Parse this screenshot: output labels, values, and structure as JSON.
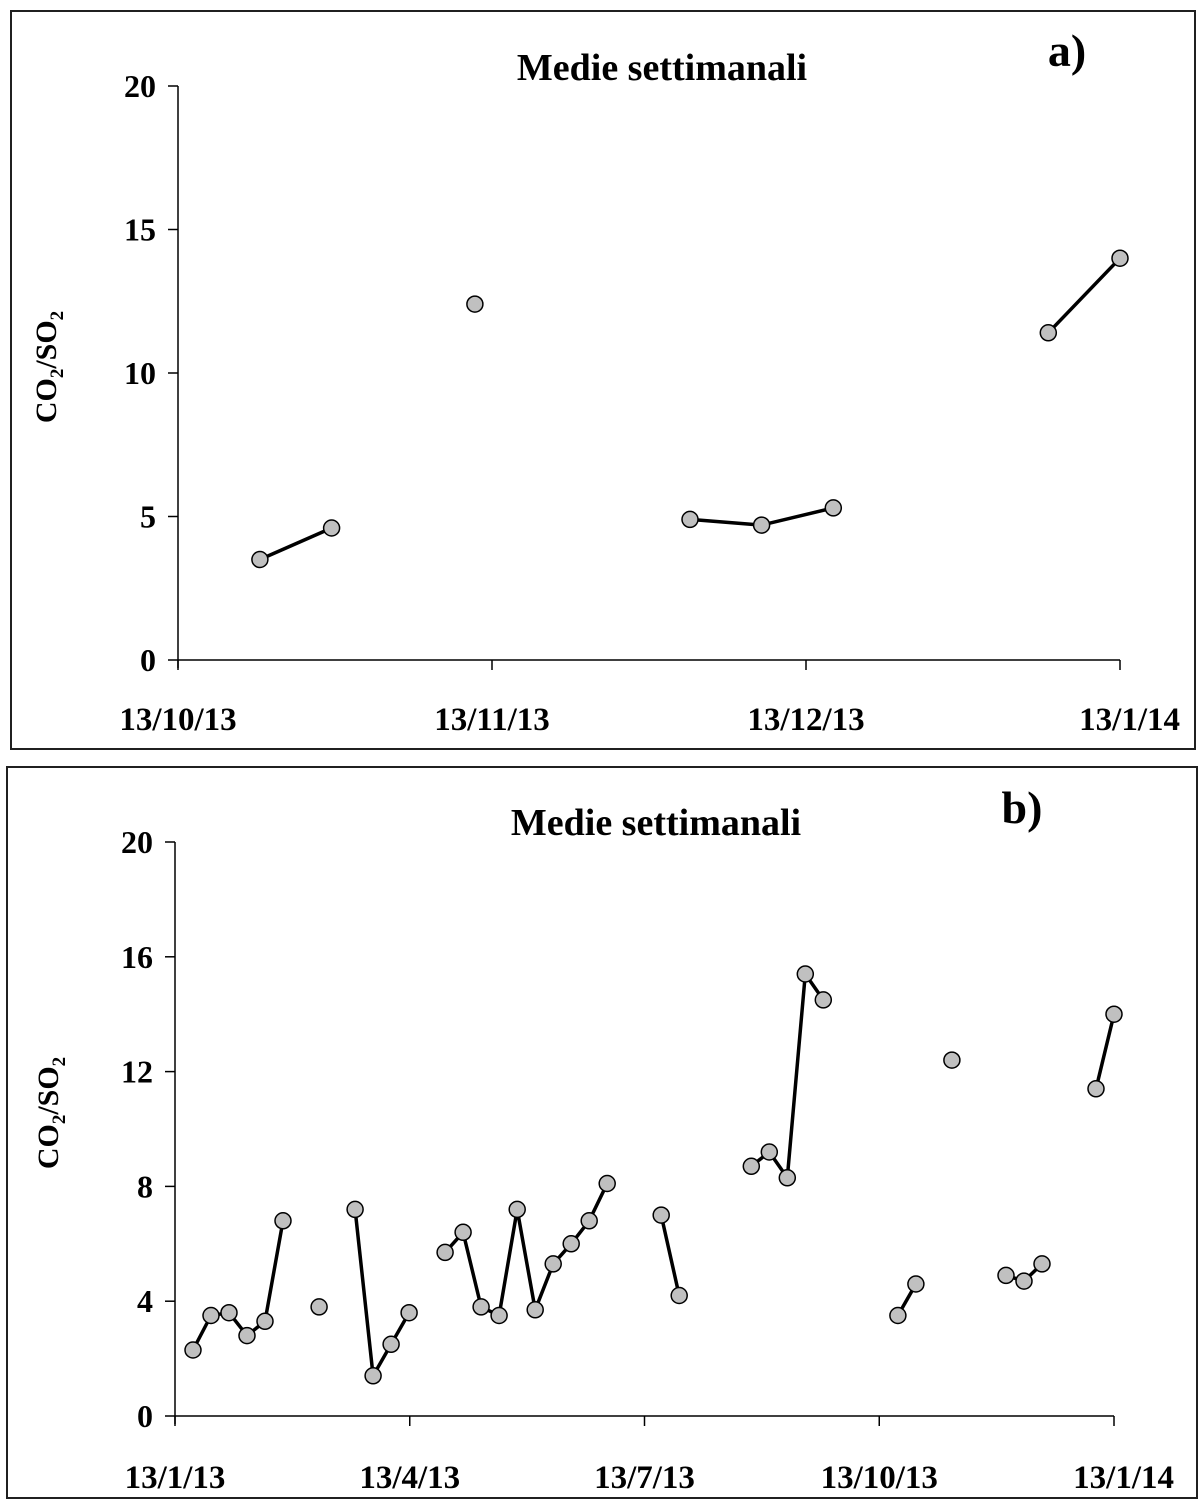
{
  "chart_data": [
    {
      "type": "line",
      "panel_label": "a)",
      "title": "Medie settimanali",
      "xlabel": "",
      "ylabel_parts": [
        "CO",
        "2",
        "/SO",
        "2"
      ],
      "x_ticks": [
        "13/10/13",
        "13/11/13",
        "13/12/13",
        "13/1/14"
      ],
      "xlim": [
        "2013-10-13",
        "2014-01-13"
      ],
      "ylim": [
        0,
        20
      ],
      "y_ticks": [
        0,
        5,
        10,
        15,
        20
      ],
      "grid": false,
      "marker_color": "#c0c0c0",
      "line_color": "#000000",
      "series": [
        {
          "segments": [
            [
              {
                "x": "2013-10-21",
                "y": 3.5
              },
              {
                "x": "2013-10-28",
                "y": 4.6
              }
            ],
            [
              {
                "x": "2013-11-11",
                "y": 12.4
              }
            ],
            [
              {
                "x": "2013-12-02",
                "y": 4.9
              },
              {
                "x": "2013-12-09",
                "y": 4.7
              },
              {
                "x": "2013-12-16",
                "y": 5.3
              }
            ],
            [
              {
                "x": "2014-01-06",
                "y": 11.4
              },
              {
                "x": "2014-01-13",
                "y": 14.0
              }
            ]
          ]
        }
      ]
    },
    {
      "type": "line",
      "panel_label": "b)",
      "title": "Medie settimanali",
      "xlabel": "",
      "ylabel_parts": [
        "CO",
        "2",
        "/SO",
        "2"
      ],
      "x_ticks": [
        "13/1/13",
        "13/4/13",
        "13/7/13",
        "13/10/13",
        "13/1/14"
      ],
      "xlim": [
        "2013-01-13",
        "2014-01-13"
      ],
      "ylim": [
        0,
        20
      ],
      "y_ticks": [
        0,
        4,
        8,
        12,
        16,
        20
      ],
      "grid": false,
      "marker_color": "#c0c0c0",
      "line_color": "#000000",
      "series": [
        {
          "segments": [
            [
              {
                "x": "2013-01-20",
                "y": 2.3
              },
              {
                "x": "2013-01-27",
                "y": 3.5
              },
              {
                "x": "2013-02-03",
                "y": 3.6
              },
              {
                "x": "2013-02-10",
                "y": 2.8
              },
              {
                "x": "2013-02-17",
                "y": 3.3
              },
              {
                "x": "2013-02-24",
                "y": 6.8
              }
            ],
            [
              {
                "x": "2013-03-10",
                "y": 3.8
              }
            ],
            [
              {
                "x": "2013-03-24",
                "y": 7.2
              },
              {
                "x": "2013-03-31",
                "y": 1.4
              },
              {
                "x": "2013-04-07",
                "y": 2.5
              },
              {
                "x": "2013-04-14",
                "y": 3.6
              }
            ],
            [
              {
                "x": "2013-04-28",
                "y": 5.7
              },
              {
                "x": "2013-05-05",
                "y": 6.4
              },
              {
                "x": "2013-05-12",
                "y": 3.8
              },
              {
                "x": "2013-05-19",
                "y": 3.5
              },
              {
                "x": "2013-05-26",
                "y": 7.2
              },
              {
                "x": "2013-06-02",
                "y": 3.7
              },
              {
                "x": "2013-06-09",
                "y": 5.3
              },
              {
                "x": "2013-06-16",
                "y": 6.0
              },
              {
                "x": "2013-06-23",
                "y": 6.8
              },
              {
                "x": "2013-06-30",
                "y": 8.1
              }
            ],
            [
              {
                "x": "2013-07-21",
                "y": 7.0
              },
              {
                "x": "2013-07-28",
                "y": 4.2
              }
            ],
            [
              {
                "x": "2013-08-25",
                "y": 8.7
              },
              {
                "x": "2013-09-01",
                "y": 9.2
              },
              {
                "x": "2013-09-08",
                "y": 8.3
              },
              {
                "x": "2013-09-15",
                "y": 15.4
              },
              {
                "x": "2013-09-22",
                "y": 14.5
              }
            ],
            [
              {
                "x": "2013-10-21",
                "y": 3.5
              },
              {
                "x": "2013-10-28",
                "y": 4.6
              }
            ],
            [
              {
                "x": "2013-11-11",
                "y": 12.4
              }
            ],
            [
              {
                "x": "2013-12-02",
                "y": 4.9
              },
              {
                "x": "2013-12-09",
                "y": 4.7
              },
              {
                "x": "2013-12-16",
                "y": 5.3
              }
            ],
            [
              {
                "x": "2014-01-06",
                "y": 11.4
              },
              {
                "x": "2014-01-13",
                "y": 14.0
              }
            ]
          ]
        }
      ]
    }
  ]
}
